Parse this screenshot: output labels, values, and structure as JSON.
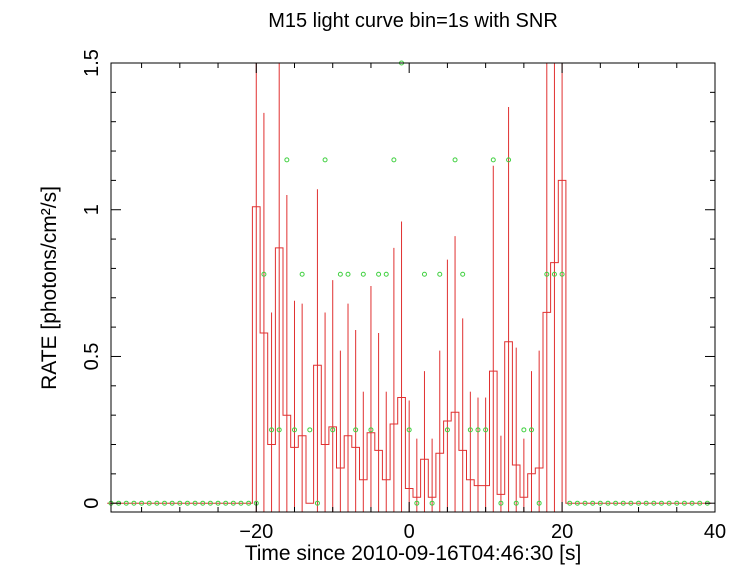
{
  "chart_data": {
    "type": "line",
    "title": "M15 light curve bin=1s with SNR",
    "xlabel": "Time since 2010-09-16T04:46:30 [s]",
    "ylabel": "RATE [photons/cm²/s]",
    "xlim": [
      -39,
      40
    ],
    "ylim": [
      -0.03,
      1.5
    ],
    "xticks": [
      -20,
      0,
      20,
      40
    ],
    "xtick_labels": [
      "−20",
      "0",
      "20",
      "40"
    ],
    "yticks": [
      0,
      0.5,
      1,
      1.5
    ],
    "ytick_labels": [
      "0",
      "0.5",
      "1",
      "1.5"
    ],
    "grid": false,
    "legend": "none",
    "colors": {
      "rate": "#e03030",
      "snr": "#40d040",
      "axes": "#000000"
    },
    "series": [
      {
        "style": "step-with-errorbars",
        "x": [
          -39,
          -38,
          -37,
          -36,
          -35,
          -34,
          -33,
          -32,
          -31,
          -30,
          -29,
          -28,
          -27,
          -26,
          -25,
          -24,
          -23,
          -22,
          -21,
          -20,
          -19,
          -18,
          -17,
          -16,
          -15,
          -14,
          -13,
          -12,
          -11,
          -10,
          -9,
          -8,
          -7,
          -6,
          -5,
          -4,
          -3,
          -2,
          -1,
          0,
          1,
          2,
          3,
          4,
          5,
          6,
          7,
          8,
          9,
          10,
          11,
          12,
          13,
          14,
          15,
          16,
          17,
          18,
          19,
          20,
          21,
          22,
          23,
          24,
          25,
          26,
          27,
          28,
          29,
          30,
          31,
          32,
          33,
          34,
          35,
          36,
          37,
          38,
          39
        ],
        "y": [
          0,
          0,
          0,
          0,
          0,
          0,
          0,
          0,
          0,
          0,
          0,
          0,
          0,
          0,
          0,
          0,
          0,
          0,
          0,
          1.01,
          0.58,
          0.2,
          0.87,
          0.3,
          0.19,
          0.23,
          0,
          0.47,
          0.2,
          0.26,
          0.12,
          0.23,
          0.19,
          0.08,
          0.24,
          0.18,
          0.08,
          0.27,
          0.36,
          0.05,
          0.02,
          0.15,
          0.02,
          0.17,
          0.28,
          0.31,
          0.18,
          0.08,
          0.06,
          0.06,
          0.45,
          0.03,
          0.55,
          0.13,
          0.02,
          0.1,
          0.12,
          0.65,
          0.82,
          1.1,
          0,
          0,
          0,
          0,
          0,
          0,
          0,
          0,
          0,
          0,
          0,
          0,
          0,
          0,
          0,
          0,
          0,
          0,
          0
        ],
        "err": [
          0,
          0,
          0,
          0,
          0,
          0,
          0,
          0,
          0,
          0,
          0,
          0,
          0,
          0,
          0,
          0,
          0,
          0,
          0,
          1.5,
          0.75,
          0.45,
          1.6,
          0.75,
          0.5,
          0.45,
          0,
          0.6,
          0.45,
          0.5,
          0.4,
          0.45,
          0.4,
          0.3,
          0.5,
          0.4,
          0.3,
          0.6,
          0.6,
          0.3,
          0.2,
          0.3,
          0.2,
          0.35,
          0.55,
          0.6,
          0.45,
          0.3,
          0.3,
          0.3,
          0.7,
          0.2,
          0.8,
          0.4,
          0.2,
          0.35,
          0.4,
          0.9,
          1.15,
          1.5,
          0,
          0,
          0,
          0,
          0,
          0,
          0,
          0,
          0,
          0,
          0,
          0,
          0,
          0,
          0,
          0,
          0,
          0,
          0
        ]
      },
      {
        "style": "markers",
        "x": [
          -39,
          -38,
          -37,
          -36,
          -35,
          -34,
          -33,
          -32,
          -31,
          -30,
          -29,
          -28,
          -27,
          -26,
          -25,
          -24,
          -23,
          -22,
          -21,
          -20,
          -19,
          -18,
          -17,
          -16,
          -15,
          -14,
          -13,
          -12,
          -11,
          -10,
          -9,
          -8,
          -7,
          -6,
          -5,
          -4,
          -3,
          -2,
          -1,
          0,
          1,
          2,
          3,
          4,
          5,
          6,
          7,
          8,
          9,
          10,
          11,
          12,
          13,
          14,
          15,
          16,
          17,
          18,
          19,
          20,
          21,
          22,
          23,
          24,
          25,
          26,
          27,
          28,
          29,
          30,
          31,
          32,
          33,
          34,
          35,
          36,
          37,
          38,
          39
        ],
        "y": [
          0,
          0,
          0,
          0,
          0,
          0,
          0,
          0,
          0,
          0,
          0,
          0,
          0,
          0,
          0,
          0,
          0,
          0,
          0,
          0,
          0.78,
          0.25,
          0.25,
          1.17,
          0.25,
          0.78,
          0.25,
          0,
          1.17,
          0.25,
          0.78,
          0.78,
          0.25,
          0.78,
          0.25,
          0.78,
          0.78,
          1.17,
          1.5,
          0.25,
          0,
          0.78,
          0,
          0.78,
          0.25,
          1.17,
          0.78,
          0.25,
          0.25,
          0.25,
          1.17,
          0,
          1.17,
          0,
          0.25,
          0.25,
          0,
          0.78,
          0.78,
          0.78,
          0,
          0,
          0,
          0,
          0,
          0,
          0,
          0,
          0,
          0,
          0,
          0,
          0,
          0,
          0,
          0,
          0,
          0,
          0
        ]
      }
    ]
  }
}
